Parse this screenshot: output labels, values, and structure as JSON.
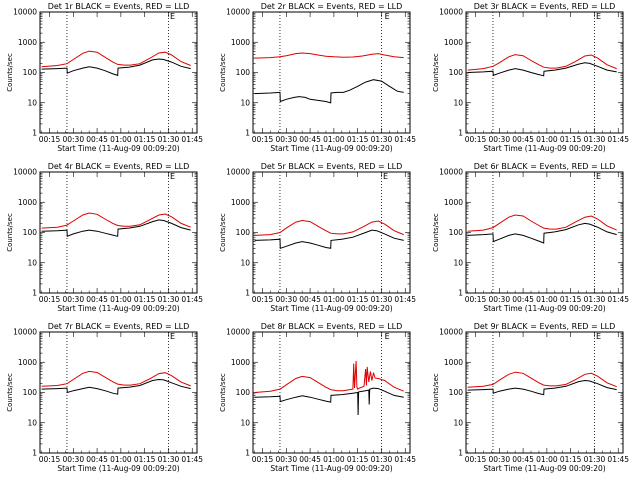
{
  "figure": {
    "x_ticks": [
      "00:15",
      "00:30",
      "00:45",
      "01:00",
      "01:15",
      "01:30",
      "01:45"
    ],
    "x_tick_values": [
      15,
      30,
      45,
      60,
      75,
      90,
      105
    ],
    "x_range": [
      9,
      108
    ],
    "y_range": [
      1,
      10000
    ],
    "y_scale": "log",
    "y_ticks": [
      "1",
      "10",
      "100",
      "1000",
      "10000"
    ],
    "y_tick_values": [
      1,
      10,
      100,
      1000,
      10000
    ],
    "ylabel": "Counts/sec",
    "xlabel": "Start Time (11-Aug-09 00:09:20)",
    "dotted_lines_x": [
      26,
      90
    ],
    "marker_text": "E",
    "colors": {
      "events": "#000000",
      "lld": "#dd0000",
      "axes": "#000000",
      "background": "#ffffff"
    }
  },
  "chart_data": [
    {
      "type": "line",
      "title": "Det 1r BLACK = Events, RED = LLD",
      "marker_x": 91,
      "series": [
        {
          "color": "#000000",
          "x": [
            10,
            20,
            26,
            26.2,
            30,
            36,
            40,
            45,
            50,
            55,
            58,
            58.2,
            65,
            72,
            80,
            84,
            87,
            92,
            98,
            104
          ],
          "y": [
            130,
            135,
            140,
            95,
            115,
            140,
            155,
            140,
            115,
            90,
            80,
            140,
            150,
            175,
            260,
            280,
            270,
            220,
            160,
            135
          ]
        },
        {
          "color": "#dd0000",
          "x": [
            10,
            20,
            26,
            30,
            36,
            40,
            45,
            50,
            55,
            58,
            62,
            66,
            72,
            78,
            84,
            88,
            92,
            98,
            104
          ],
          "y": [
            155,
            170,
            195,
            270,
            430,
            510,
            470,
            320,
            220,
            185,
            175,
            175,
            195,
            290,
            440,
            470,
            380,
            230,
            170
          ]
        }
      ]
    },
    {
      "type": "line",
      "title": "Det 2r BLACK = Events, RED = LLD",
      "marker_x": 92,
      "series": [
        {
          "color": "#000000",
          "x": [
            10,
            20,
            26,
            26.2,
            30,
            35,
            38,
            42,
            45,
            50,
            55,
            58,
            58.2,
            62,
            66,
            70,
            75,
            80,
            85,
            90,
            95,
            100,
            104
          ],
          "y": [
            20,
            21,
            22,
            11,
            13,
            15,
            16,
            15,
            13,
            12,
            11,
            10,
            21,
            22,
            22,
            26,
            35,
            48,
            58,
            52,
            35,
            24,
            22
          ]
        },
        {
          "color": "#dd0000",
          "x": [
            10,
            20,
            26,
            30,
            36,
            40,
            45,
            50,
            55,
            60,
            66,
            72,
            78,
            84,
            88,
            92,
            98,
            104
          ],
          "y": [
            300,
            310,
            330,
            360,
            420,
            440,
            420,
            380,
            345,
            330,
            320,
            325,
            350,
            400,
            420,
            380,
            330,
            310
          ]
        }
      ]
    },
    {
      "type": "line",
      "title": "Det 3r BLACK = Events, RED = LLD",
      "marker_x": 91,
      "series": [
        {
          "color": "#000000",
          "x": [
            10,
            20,
            26,
            26.2,
            30,
            36,
            40,
            45,
            50,
            55,
            58,
            58.2,
            65,
            72,
            80,
            84,
            87,
            92,
            98,
            104
          ],
          "y": [
            100,
            105,
            110,
            80,
            95,
            120,
            135,
            120,
            100,
            85,
            78,
            110,
            120,
            140,
            190,
            210,
            200,
            160,
            120,
            105
          ]
        },
        {
          "color": "#dd0000",
          "x": [
            10,
            20,
            26,
            30,
            36,
            40,
            45,
            50,
            55,
            58,
            62,
            66,
            72,
            78,
            84,
            88,
            92,
            98,
            104
          ],
          "y": [
            120,
            135,
            160,
            210,
            330,
            390,
            360,
            250,
            180,
            150,
            140,
            140,
            160,
            230,
            350,
            380,
            300,
            180,
            135
          ]
        }
      ]
    },
    {
      "type": "line",
      "title": "Det 4r BLACK = Events, RED = LLD",
      "marker_x": 91,
      "series": [
        {
          "color": "#000000",
          "x": [
            10,
            20,
            26,
            26.2,
            30,
            36,
            40,
            45,
            50,
            55,
            58,
            58.2,
            65,
            72,
            80,
            84,
            87,
            92,
            98,
            104
          ],
          "y": [
            110,
            115,
            120,
            75,
            90,
            110,
            120,
            110,
            95,
            82,
            75,
            130,
            140,
            160,
            230,
            260,
            250,
            200,
            145,
            120
          ]
        },
        {
          "color": "#dd0000",
          "x": [
            10,
            20,
            26,
            30,
            36,
            40,
            45,
            50,
            55,
            58,
            62,
            66,
            72,
            78,
            84,
            88,
            92,
            98,
            104
          ],
          "y": [
            140,
            150,
            175,
            240,
            380,
            440,
            400,
            280,
            200,
            170,
            160,
            160,
            180,
            260,
            380,
            410,
            330,
            200,
            150
          ]
        }
      ]
    },
    {
      "type": "line",
      "title": "Det 5r BLACK = Events, RED = LLD",
      "marker_x": 91,
      "series": [
        {
          "color": "#000000",
          "x": [
            10,
            20,
            26,
            26.2,
            30,
            36,
            40,
            45,
            50,
            55,
            58,
            58.2,
            65,
            72,
            80,
            84,
            87,
            92,
            98,
            104
          ],
          "y": [
            55,
            57,
            60,
            30,
            35,
            45,
            50,
            45,
            38,
            32,
            30,
            55,
            60,
            70,
            100,
            120,
            115,
            90,
            65,
            55
          ]
        },
        {
          "color": "#dd0000",
          "x": [
            10,
            20,
            26,
            30,
            36,
            40,
            45,
            50,
            55,
            58,
            62,
            66,
            72,
            78,
            84,
            88,
            92,
            98,
            104
          ],
          "y": [
            80,
            85,
            100,
            140,
            220,
            250,
            230,
            160,
            115,
            95,
            90,
            90,
            105,
            150,
            220,
            240,
            190,
            115,
            85
          ]
        }
      ]
    },
    {
      "type": "line",
      "title": "Det 6r BLACK = Events, RED = LLD",
      "marker_x": 91,
      "series": [
        {
          "color": "#000000",
          "x": [
            10,
            20,
            26,
            26.2,
            30,
            36,
            40,
            45,
            50,
            55,
            58,
            58.2,
            65,
            72,
            80,
            84,
            87,
            92,
            98,
            104
          ],
          "y": [
            80,
            85,
            90,
            50,
            60,
            80,
            90,
            80,
            65,
            52,
            45,
            95,
            105,
            125,
            180,
            200,
            190,
            150,
            105,
            85
          ]
        },
        {
          "color": "#dd0000",
          "x": [
            10,
            20,
            26,
            30,
            36,
            40,
            45,
            50,
            55,
            58,
            62,
            66,
            72,
            78,
            84,
            88,
            92,
            98,
            104
          ],
          "y": [
            110,
            120,
            145,
            200,
            320,
            380,
            350,
            240,
            170,
            140,
            130,
            130,
            150,
            220,
            320,
            350,
            280,
            165,
            120
          ]
        }
      ]
    },
    {
      "type": "line",
      "title": "Det 7r BLACK = Events, RED = LLD",
      "marker_x": 91,
      "series": [
        {
          "color": "#000000",
          "x": [
            10,
            20,
            26,
            26.2,
            30,
            36,
            40,
            45,
            50,
            55,
            58,
            58.2,
            65,
            72,
            80,
            84,
            87,
            92,
            98,
            104
          ],
          "y": [
            130,
            135,
            140,
            100,
            115,
            135,
            150,
            135,
            115,
            95,
            88,
            140,
            150,
            170,
            250,
            270,
            260,
            210,
            160,
            135
          ]
        },
        {
          "color": "#dd0000",
          "x": [
            10,
            20,
            26,
            30,
            36,
            40,
            45,
            50,
            55,
            58,
            62,
            66,
            72,
            78,
            84,
            88,
            92,
            98,
            104
          ],
          "y": [
            160,
            170,
            195,
            270,
            430,
            500,
            460,
            320,
            225,
            190,
            175,
            175,
            195,
            280,
            420,
            450,
            360,
            220,
            165
          ]
        }
      ]
    },
    {
      "type": "line",
      "title": "Det 8r BLACK = Events, RED = LLD",
      "marker_x": 92,
      "series": [
        {
          "color": "#000000",
          "x": [
            10,
            20,
            26,
            26.2,
            30,
            36,
            40,
            45,
            50,
            55,
            58,
            58.2,
            65,
            72,
            75,
            75.3,
            75.6,
            80,
            82,
            82.3,
            82.6,
            85,
            88,
            92,
            98,
            104
          ],
          "y": [
            70,
            72,
            75,
            50,
            58,
            70,
            78,
            70,
            60,
            52,
            48,
            80,
            85,
            95,
            100,
            18,
            105,
            115,
            120,
            40,
            130,
            140,
            135,
            110,
            80,
            70
          ]
        },
        {
          "color": "#dd0000",
          "x": [
            10,
            20,
            26,
            30,
            36,
            40,
            45,
            50,
            55,
            58,
            62,
            66,
            70,
            72,
            72.5,
            73,
            74,
            74.5,
            75,
            76,
            79,
            80,
            80.5,
            81,
            82,
            83,
            84,
            85,
            86,
            88,
            92,
            98,
            104
          ],
          "y": [
            100,
            110,
            130,
            180,
            290,
            340,
            310,
            215,
            150,
            125,
            115,
            115,
            125,
            130,
            900,
            140,
            1100,
            150,
            130,
            140,
            160,
            600,
            170,
            700,
            220,
            500,
            250,
            450,
            300,
            290,
            250,
            150,
            110
          ]
        }
      ]
    },
    {
      "type": "line",
      "title": "Det 9r BLACK = Events, RED = LLD",
      "marker_x": 91,
      "series": [
        {
          "color": "#000000",
          "x": [
            10,
            20,
            26,
            26.2,
            30,
            36,
            40,
            45,
            50,
            55,
            58,
            58.2,
            65,
            72,
            80,
            84,
            87,
            92,
            98,
            104
          ],
          "y": [
            120,
            125,
            130,
            95,
            110,
            130,
            140,
            130,
            110,
            92,
            85,
            130,
            140,
            160,
            230,
            250,
            240,
            195,
            145,
            125
          ]
        },
        {
          "color": "#dd0000",
          "x": [
            10,
            20,
            26,
            30,
            36,
            40,
            45,
            50,
            55,
            58,
            62,
            66,
            72,
            78,
            84,
            88,
            92,
            98,
            104
          ],
          "y": [
            150,
            160,
            185,
            255,
            400,
            470,
            430,
            300,
            210,
            175,
            165,
            165,
            185,
            265,
            400,
            430,
            345,
            210,
            155
          ]
        }
      ]
    }
  ]
}
